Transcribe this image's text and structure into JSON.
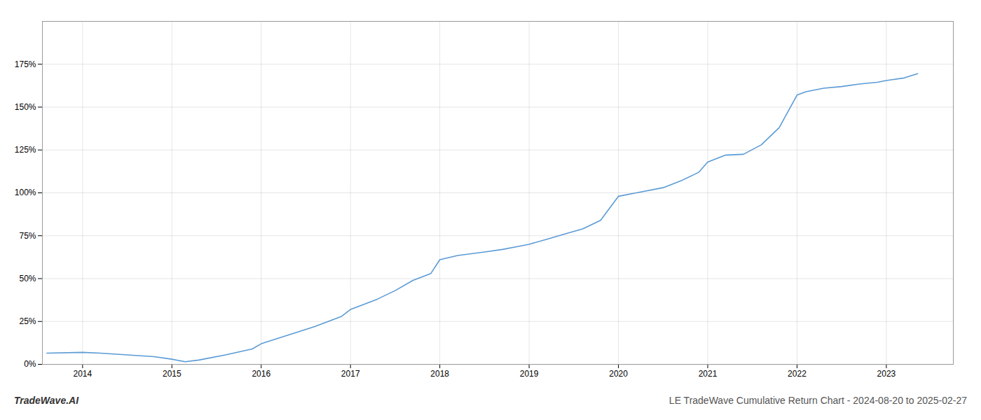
{
  "chart_data": {
    "type": "line",
    "title": "LE TradeWave Cumulative Return Chart - 2024-08-20 to 2025-02-27",
    "annotations": [
      "TradeWave.AI"
    ],
    "color": "#5b9bd5",
    "grid": true,
    "x": [
      2013.6,
      2014.0,
      2014.2,
      2014.5,
      2014.8,
      2015.0,
      2015.15,
      2015.3,
      2015.6,
      2015.9,
      2016.0,
      2016.3,
      2016.6,
      2016.9,
      2017.0,
      2017.3,
      2017.5,
      2017.7,
      2017.9,
      2018.0,
      2018.2,
      2018.5,
      2018.7,
      2018.9,
      2019.0,
      2019.2,
      2019.4,
      2019.6,
      2019.8,
      2020.0,
      2020.2,
      2020.5,
      2020.7,
      2020.9,
      2021.0,
      2021.2,
      2021.4,
      2021.6,
      2021.8,
      2022.0,
      2022.1,
      2022.3,
      2022.5,
      2022.7,
      2022.9,
      2023.0,
      2023.2,
      2023.35
    ],
    "values": [
      6.5,
      7.0,
      6.5,
      5.5,
      4.5,
      3.0,
      1.5,
      2.5,
      5.5,
      9.0,
      12.0,
      17.0,
      22.0,
      28.0,
      32.0,
      38.0,
      43.0,
      49.0,
      53.0,
      61.0,
      63.5,
      65.5,
      67.0,
      69.0,
      70.0,
      73.0,
      76.0,
      79.0,
      84.0,
      98.0,
      100.0,
      103.0,
      107.0,
      112.0,
      118.0,
      122.0,
      122.5,
      128.0,
      138.0,
      157.0,
      159.0,
      161.0,
      162.0,
      163.5,
      164.5,
      165.5,
      167.0,
      169.5
    ],
    "xlim": [
      2013.55,
      2023.75
    ],
    "xticks": [
      2014,
      2015,
      2016,
      2017,
      2018,
      2019,
      2020,
      2021,
      2022,
      2023
    ],
    "ylim": [
      0,
      200
    ],
    "yticks": [
      {
        "value": 0,
        "label": "0%"
      },
      {
        "value": 25,
        "label": "25%"
      },
      {
        "value": 50,
        "label": "50%"
      },
      {
        "value": 75,
        "label": "75%"
      },
      {
        "value": 100,
        "label": "100%"
      },
      {
        "value": 125,
        "label": "125%"
      },
      {
        "value": 150,
        "label": "150%"
      },
      {
        "value": 175,
        "label": "175%"
      }
    ]
  }
}
